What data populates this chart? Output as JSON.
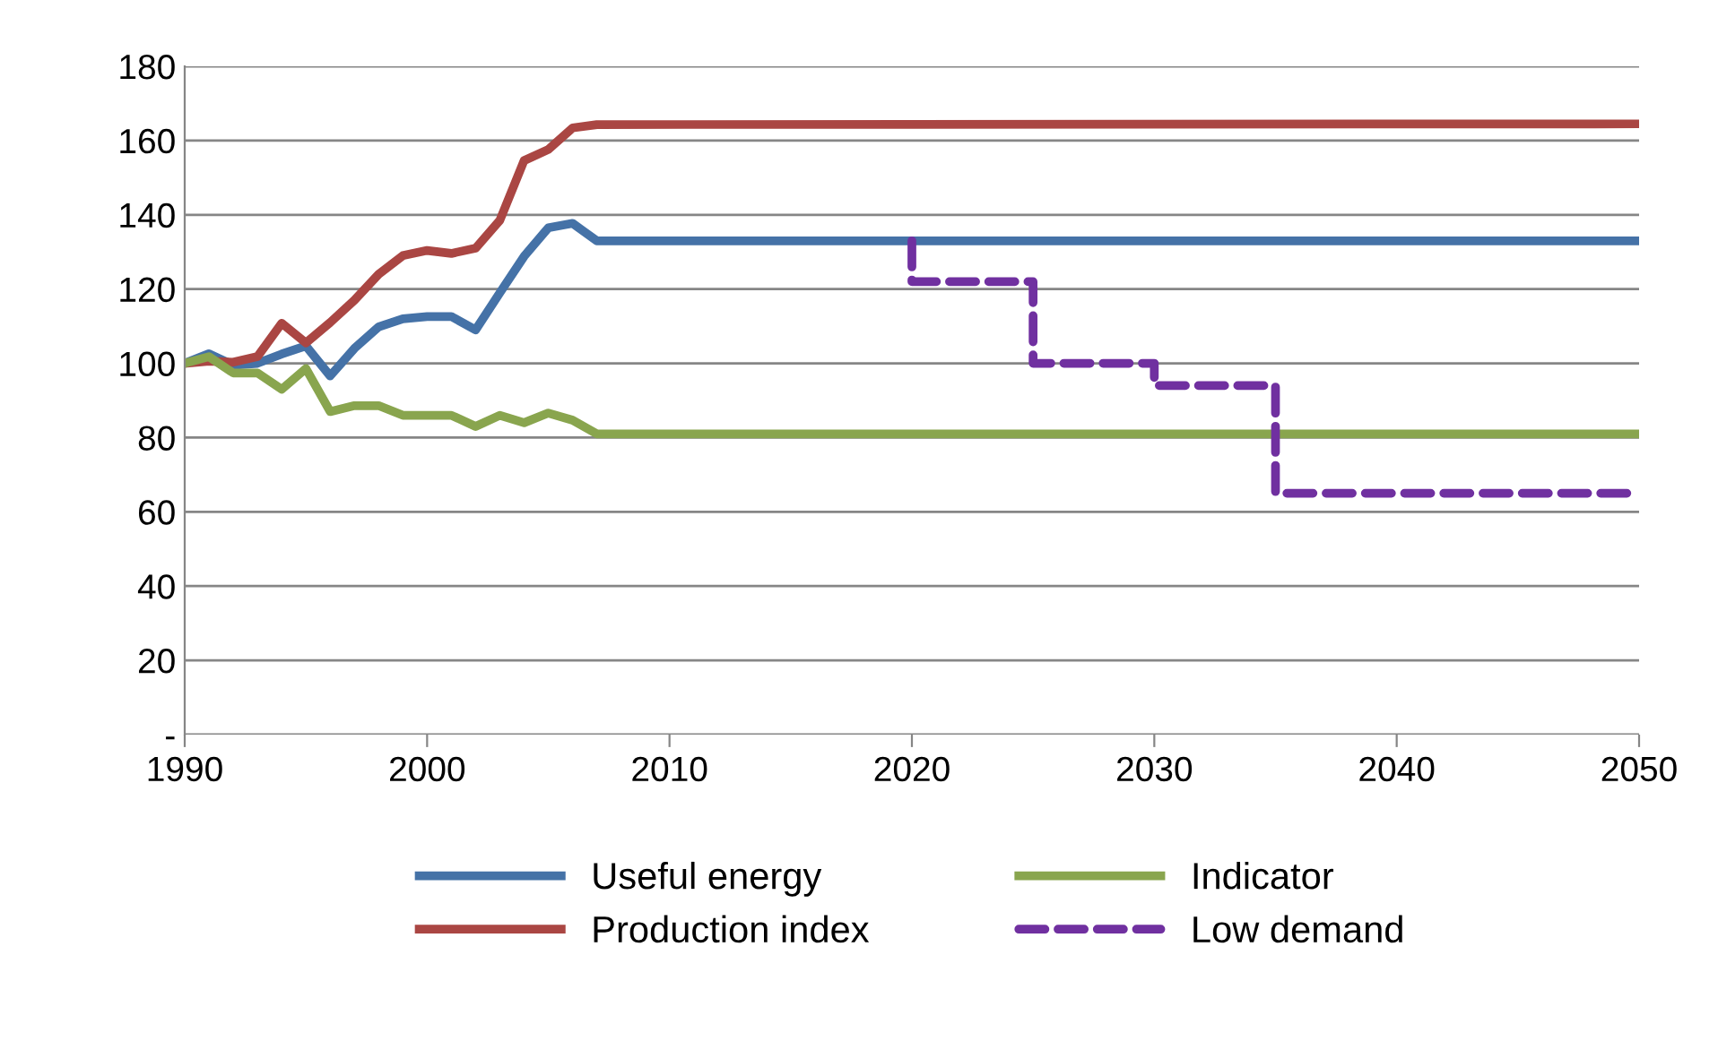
{
  "chart_data": {
    "type": "line",
    "xlim": [
      1990,
      2050
    ],
    "xticks": [
      1990,
      2000,
      2010,
      2020,
      2030,
      2040,
      2050
    ],
    "ylim": [
      0,
      180
    ],
    "yticks": [
      {
        "value": 0,
        "label": "-"
      },
      20,
      40,
      60,
      80,
      100,
      120,
      140,
      160,
      180
    ],
    "grid": "y",
    "legend": "bottom",
    "marker": "none",
    "series": [
      {
        "name": "Useful energy",
        "color": "#4572a7",
        "x": [
          1990,
          1991,
          1992,
          1993,
          1994,
          1995,
          1996,
          1997,
          1998,
          1999,
          2000,
          2001,
          2002,
          2003,
          2004,
          2005,
          2006,
          2007,
          2050
        ],
        "values": [
          100,
          102.6,
          99.5,
          100,
          102.5,
          104.7,
          96.6,
          104,
          109.8,
          112,
          112.6,
          112.6,
          109,
          119,
          128.8,
          136.5,
          137.7,
          133,
          133
        ]
      },
      {
        "name": "Production index",
        "color": "#aa4643",
        "x": [
          1990,
          1991,
          1992,
          1993,
          1994,
          1995,
          1996,
          1997,
          1998,
          1999,
          2000,
          2001,
          2002,
          2003,
          2004,
          2005,
          2006,
          2007,
          2050
        ],
        "values": [
          100,
          100.6,
          100.3,
          101.8,
          110.8,
          105.5,
          111,
          117,
          124,
          129,
          130.4,
          129.6,
          131,
          138.5,
          154.6,
          157.6,
          163.4,
          164.3,
          164.5
        ]
      },
      {
        "name": "Indicator",
        "color": "#89a54e",
        "x": [
          1990,
          1991,
          1992,
          1993,
          1994,
          1995,
          1996,
          1997,
          1998,
          1999,
          2000,
          2001,
          2002,
          2003,
          2004,
          2005,
          2006,
          2007,
          2050
        ],
        "values": [
          100,
          101.8,
          97.4,
          97.4,
          93,
          98.6,
          87,
          88.6,
          88.6,
          86,
          86,
          86,
          83,
          86,
          84,
          86.6,
          84.7,
          81,
          81
        ]
      },
      {
        "name": "Low demand",
        "color": "#7030a0",
        "line_style": "dashed",
        "x": [
          2020,
          2020,
          2025,
          2025,
          2030,
          2030,
          2035,
          2035,
          2050
        ],
        "values": [
          133,
          122,
          122,
          100,
          100,
          94,
          94,
          65,
          65
        ]
      }
    ]
  }
}
